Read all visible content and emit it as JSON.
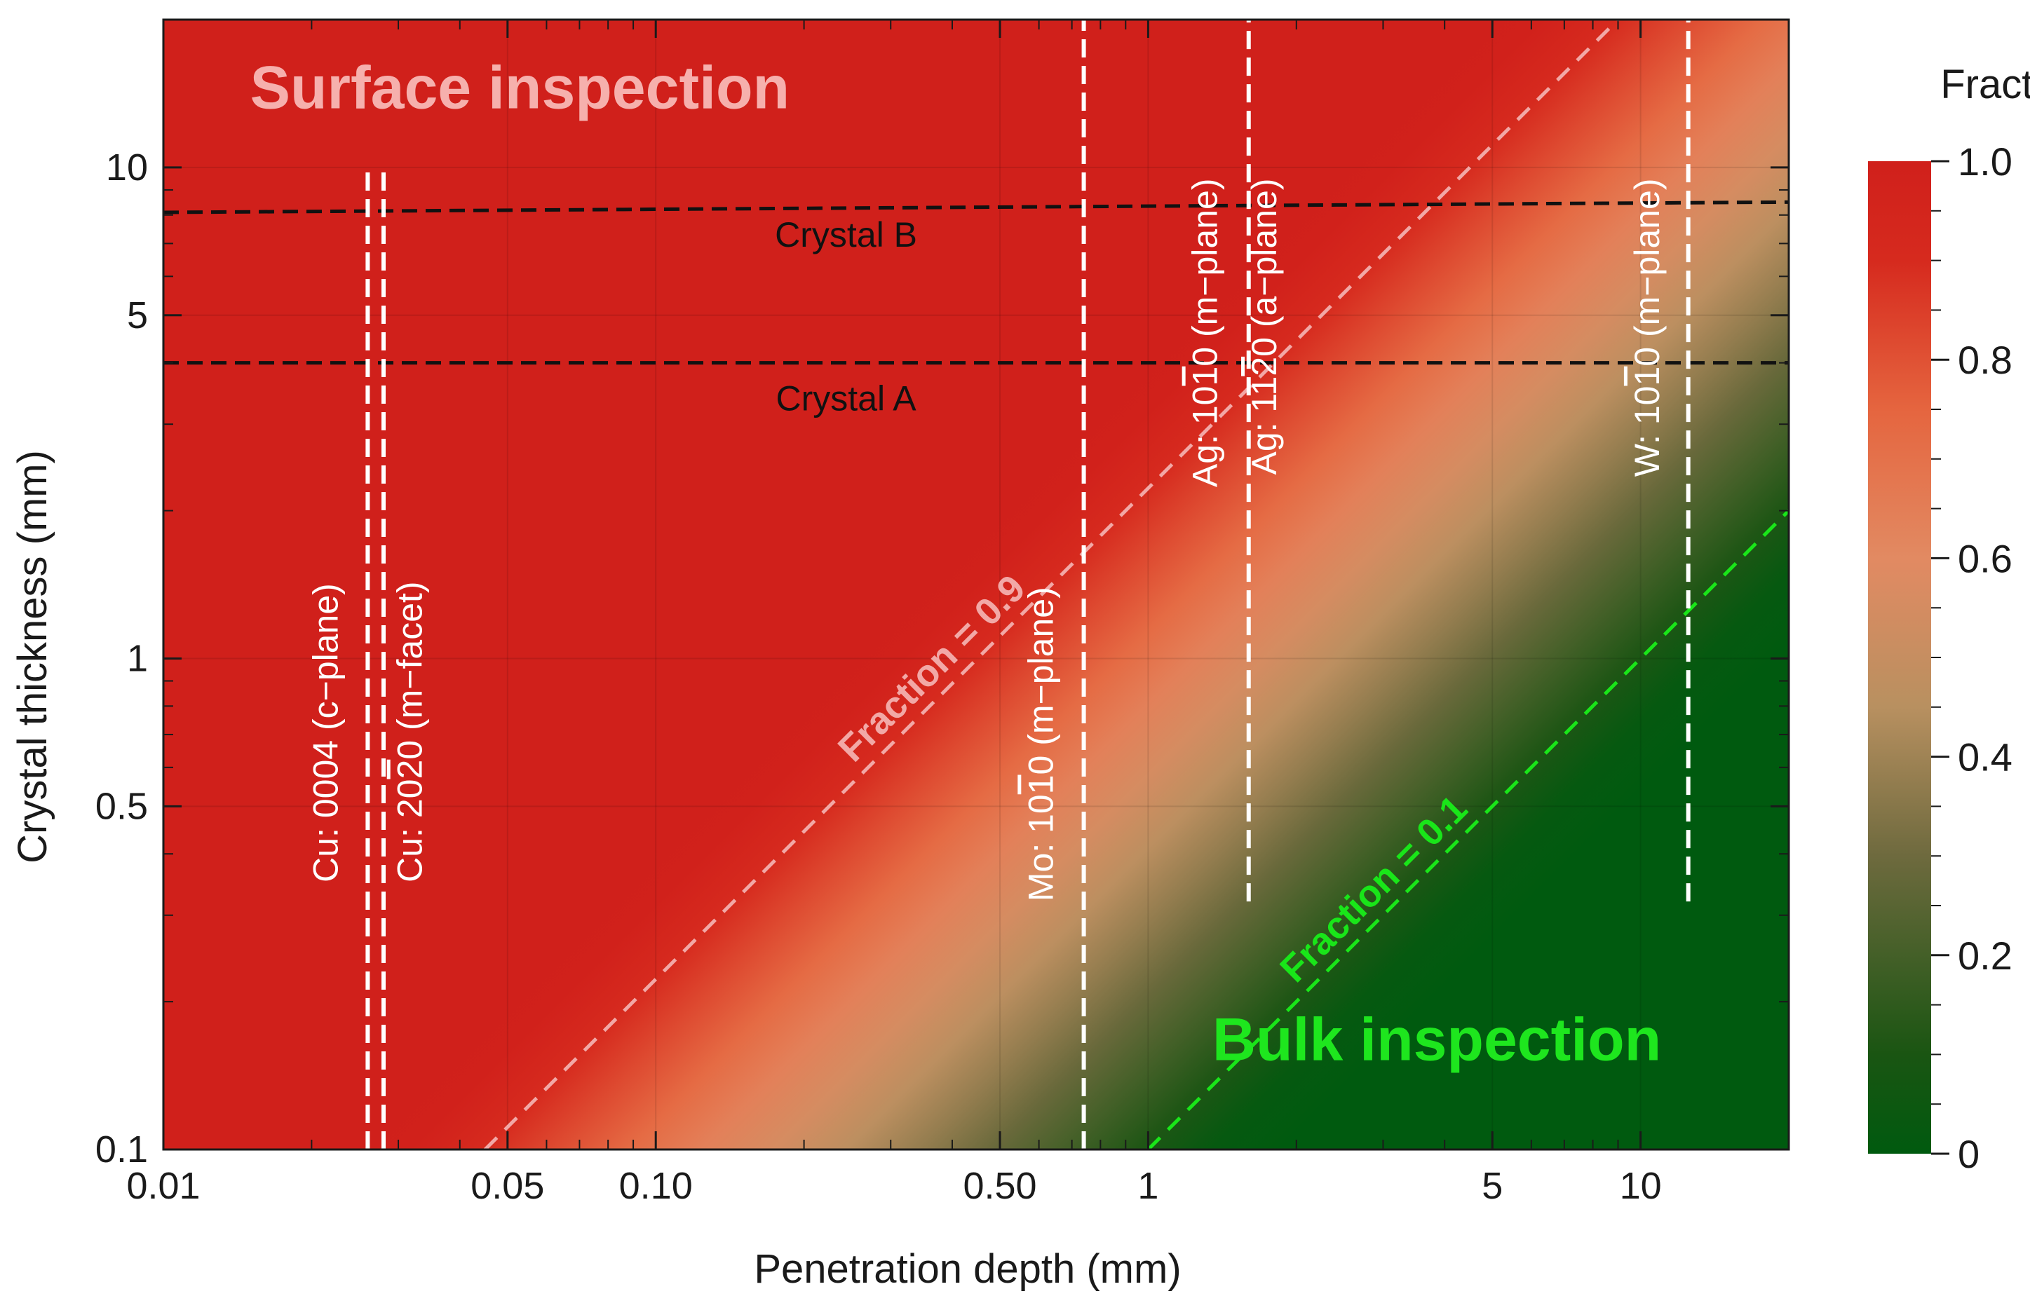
{
  "chart_data": {
    "type": "heatmap",
    "title": "",
    "xlabel": "Penetration depth (mm)",
    "ylabel": "Crystal thickness (mm)",
    "xscale": "log",
    "yscale": "log",
    "xlim": [
      0.01,
      20
    ],
    "ylim": [
      0.1,
      20
    ],
    "x_ticks": [
      {
        "value": 0.01,
        "label": "0.01"
      },
      {
        "value": 0.05,
        "label": "0.05"
      },
      {
        "value": 0.1,
        "label": "0.10"
      },
      {
        "value": 0.5,
        "label": "0.50"
      },
      {
        "value": 1,
        "label": "1"
      },
      {
        "value": 5,
        "label": "5"
      },
      {
        "value": 10,
        "label": "10"
      }
    ],
    "y_ticks": [
      {
        "value": 0.1,
        "label": "0.1"
      },
      {
        "value": 0.5,
        "label": "0.5"
      },
      {
        "value": 1,
        "label": "1"
      },
      {
        "value": 5,
        "label": "5"
      },
      {
        "value": 10,
        "label": "10"
      }
    ],
    "colorbar": {
      "title": "Fraction",
      "range": [
        0,
        1
      ],
      "ticks": [
        {
          "value": 0,
          "label": "0"
        },
        {
          "value": 0.2,
          "label": "0.2"
        },
        {
          "value": 0.4,
          "label": "0.4"
        },
        {
          "value": 0.6,
          "label": "0.6"
        },
        {
          "value": 0.8,
          "label": "0.8"
        },
        {
          "value": 1.0,
          "label": "1.0"
        }
      ],
      "colors": [
        {
          "value": 0.0,
          "color": "#005a0f"
        },
        {
          "value": 0.1,
          "color": "#1a5512"
        },
        {
          "value": 0.3,
          "color": "#6e6a3e"
        },
        {
          "value": 0.45,
          "color": "#b89060"
        },
        {
          "value": 0.6,
          "color": "#e28a62"
        },
        {
          "value": 0.75,
          "color": "#e5653f"
        },
        {
          "value": 0.9,
          "color": "#d62a1e"
        },
        {
          "value": 1.0,
          "color": "#d0201b"
        }
      ]
    },
    "contours": [
      {
        "name": "fraction-0.9",
        "label": "Fraction = 0.9",
        "level": 0.9,
        "color": "#f2a8a6",
        "points": [
          [
            0.045,
            0.1
          ],
          [
            9.0,
            20.0
          ]
        ]
      },
      {
        "name": "fraction-0.1",
        "label": "Fraction = 0.1",
        "level": 0.1,
        "color": "#19e619",
        "points": [
          [
            1.0,
            0.1
          ],
          [
            20.0,
            2.0
          ]
        ]
      }
    ],
    "horizontal_lines": [
      {
        "name": "crystal-b",
        "label": "Crystal B",
        "y_start": 8.1,
        "y_end": 8.5,
        "label_x": 0.2,
        "label_y": 6.9
      },
      {
        "name": "crystal-a",
        "label": "Crystal A",
        "y_start": 4.0,
        "y_end": 4.0,
        "label_x": 0.2,
        "label_y": 3.2
      }
    ],
    "vertical_lines": [
      {
        "name": "cu-c-plane",
        "x": 0.026,
        "y_from": 0.1,
        "y_to": 10.0,
        "label_parts": [
          "Cu: 0004 (c−plane)"
        ],
        "label_x": 0.0226,
        "label_y": 0.35
      },
      {
        "name": "cu-m-facet",
        "x": 0.028,
        "y_from": 0.1,
        "y_to": 10.0,
        "label_parts": [
          "Cu: 20",
          "2",
          "0 (m−facet)"
        ],
        "label_x": 0.0335,
        "label_y": 0.35
      },
      {
        "name": "mo-m-plane",
        "x": 0.74,
        "y_from": 0.1,
        "y_to": 20.0,
        "label_parts": [
          "Mo: 10",
          "1",
          "0 (m−plane)"
        ],
        "label_x": 0.64,
        "label_y": 0.32
      },
      {
        "name": "ag-m-plane",
        "x": 1.6,
        "y_from": 0.32,
        "y_to": 20.0,
        "label_parts": [
          "Ag: 10",
          "1",
          "0 (m−plane)"
        ],
        "label_x": 1.38,
        "label_y": 9.5
      },
      {
        "name": "ag-a-plane",
        "x": 1.6,
        "y_from": 0.32,
        "y_to": 20.0,
        "label_parts": [
          "Ag: 11",
          "2",
          "0 (a−plane)"
        ],
        "label_x": 1.82,
        "label_y": 9.5
      },
      {
        "name": "w-m-plane",
        "x": 12.5,
        "y_from": 0.32,
        "y_to": 20.0,
        "label_parts": [
          "W: 10",
          "1",
          "0 (m−plane)"
        ],
        "label_x": 10.9,
        "label_y": 9.5
      }
    ],
    "annotations": [
      {
        "name": "surface-inspection",
        "text": "Surface inspection",
        "x": 0.015,
        "y": 13.2,
        "color": "#f6b0ad"
      },
      {
        "name": "bulk-inspection",
        "text": "Bulk inspection",
        "x": 1.35,
        "y": 0.152,
        "color": "#1ee61e"
      }
    ]
  }
}
